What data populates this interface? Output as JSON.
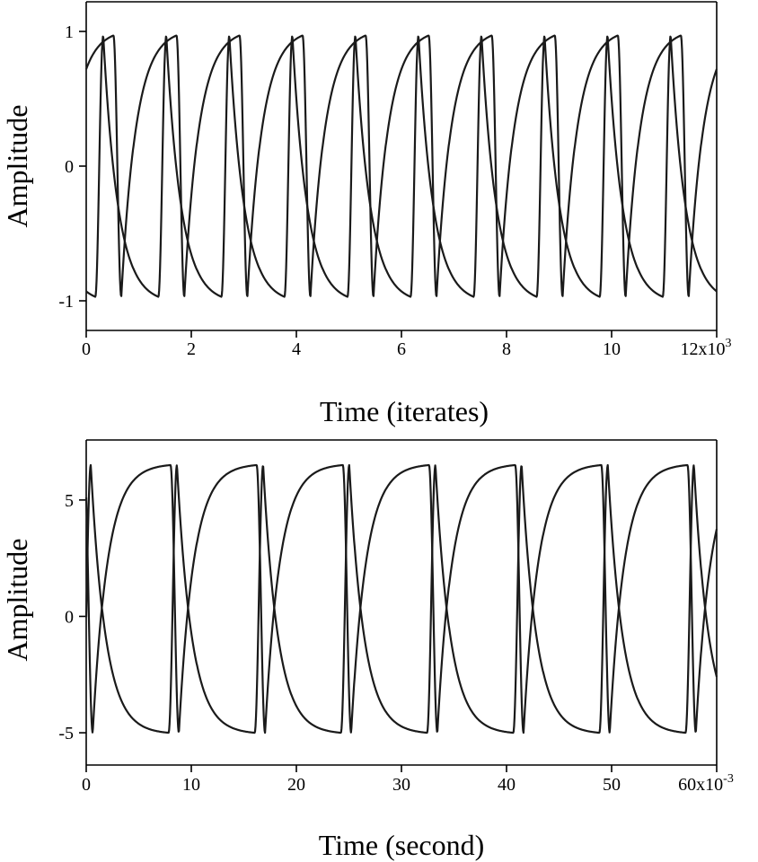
{
  "chart_data": [
    {
      "type": "line",
      "title": "",
      "xlabel": "Time (iterates)",
      "ylabel": "Amplitude",
      "xlim": [
        0,
        12000
      ],
      "ylim": [
        -1.1,
        1.1
      ],
      "x_ticks": [
        {
          "value": 0,
          "label": "0"
        },
        {
          "value": 2000,
          "label": "2"
        },
        {
          "value": 4000,
          "label": "4"
        },
        {
          "value": 6000,
          "label": "6"
        },
        {
          "value": 8000,
          "label": "8"
        },
        {
          "value": 10000,
          "label": "10"
        },
        {
          "value": 12000,
          "label": "12x10",
          "exponent": "3"
        }
      ],
      "y_ticks": [
        {
          "value": 1,
          "label": "1"
        },
        {
          "value": 0,
          "label": "0"
        },
        {
          "value": -1,
          "label": "-1"
        }
      ],
      "series": [
        {
          "amplitude": 0.97,
          "period": 1200,
          "initial_value": 0.72,
          "initial_direction": "rising",
          "sharp_edge": "falling",
          "sharp_transition_width": 150,
          "relax_time_constant": 280
        },
        {
          "amplitude": 0.97,
          "period": 1200,
          "initial_value": -0.93,
          "initial_direction": "falling",
          "sharp_edge": "rising",
          "sharp_transition_width": 150,
          "relax_time_constant": 280
        }
      ],
      "grid": false,
      "legend": "none"
    },
    {
      "type": "line",
      "title": "",
      "xlabel": "Time (second)",
      "ylabel": "Amplitude",
      "xlim": [
        0,
        0.06
      ],
      "ylim": [
        -6,
        7
      ],
      "x_ticks": [
        {
          "value": 0,
          "label": "0"
        },
        {
          "value": 0.01,
          "label": "10"
        },
        {
          "value": 0.02,
          "label": "20"
        },
        {
          "value": 0.03,
          "label": "30"
        },
        {
          "value": 0.04,
          "label": "40"
        },
        {
          "value": 0.05,
          "label": "50"
        },
        {
          "value": 0.06,
          "label": "60x10",
          "exponent": "-3"
        }
      ],
      "y_ticks": [
        {
          "value": 5,
          "label": "5"
        },
        {
          "value": 0,
          "label": "0"
        },
        {
          "value": -5,
          "label": "-5"
        }
      ],
      "series": [
        {
          "max": 6.5,
          "min": -5,
          "period": 0.0082,
          "initial_value": 0.0,
          "initial_direction": "rising",
          "sharp_edge": "rising",
          "sharp_transition_width": 0.0008,
          "relax_time_constant": 0.0014
        },
        {
          "max": 6.5,
          "min": -5,
          "period": 0.0082,
          "initial_value": 5.1,
          "initial_direction": "falling",
          "sharp_edge": "falling",
          "sharp_transition_width": 0.0008,
          "relax_time_constant": 0.0014
        }
      ],
      "grid": false,
      "legend": "none"
    }
  ]
}
